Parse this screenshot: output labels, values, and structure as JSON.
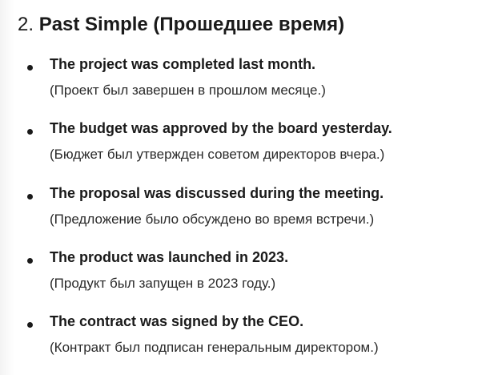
{
  "section": {
    "number": "2.",
    "title": "Past Simple (Прошедшее время)"
  },
  "items": [
    {
      "english": "The project was completed last month.",
      "translation": "(Проект был завершен в прошлом месяце.)"
    },
    {
      "english": "The budget was approved by the board yesterday.",
      "translation": "(Бюджет был утвержден советом директоров вчера.)"
    },
    {
      "english": "The proposal was discussed during the meeting.",
      "translation": "(Предложение было обсуждено во время встречи.)"
    },
    {
      "english": "The product was launched in 2023.",
      "translation": "(Продукт был запущен в 2023 году.)"
    },
    {
      "english": "The contract was signed by the CEO.",
      "translation": "(Контракт был подписан генеральным директором.)"
    }
  ]
}
